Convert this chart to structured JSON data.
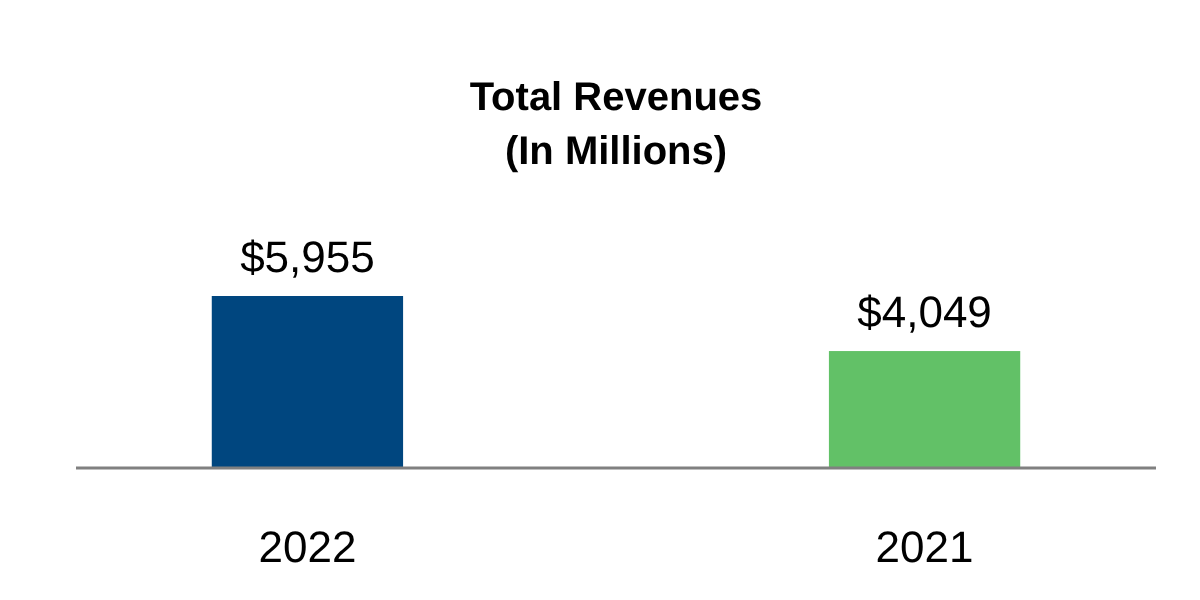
{
  "chart_data": {
    "type": "bar",
    "title": "Total Revenues\n(In Millions)",
    "categories": [
      "2022",
      "2021"
    ],
    "values": [
      5955,
      4049
    ],
    "colors": [
      "#00467f",
      "#62c167"
    ],
    "value_labels": [
      "$5,955",
      "$4,049"
    ]
  }
}
